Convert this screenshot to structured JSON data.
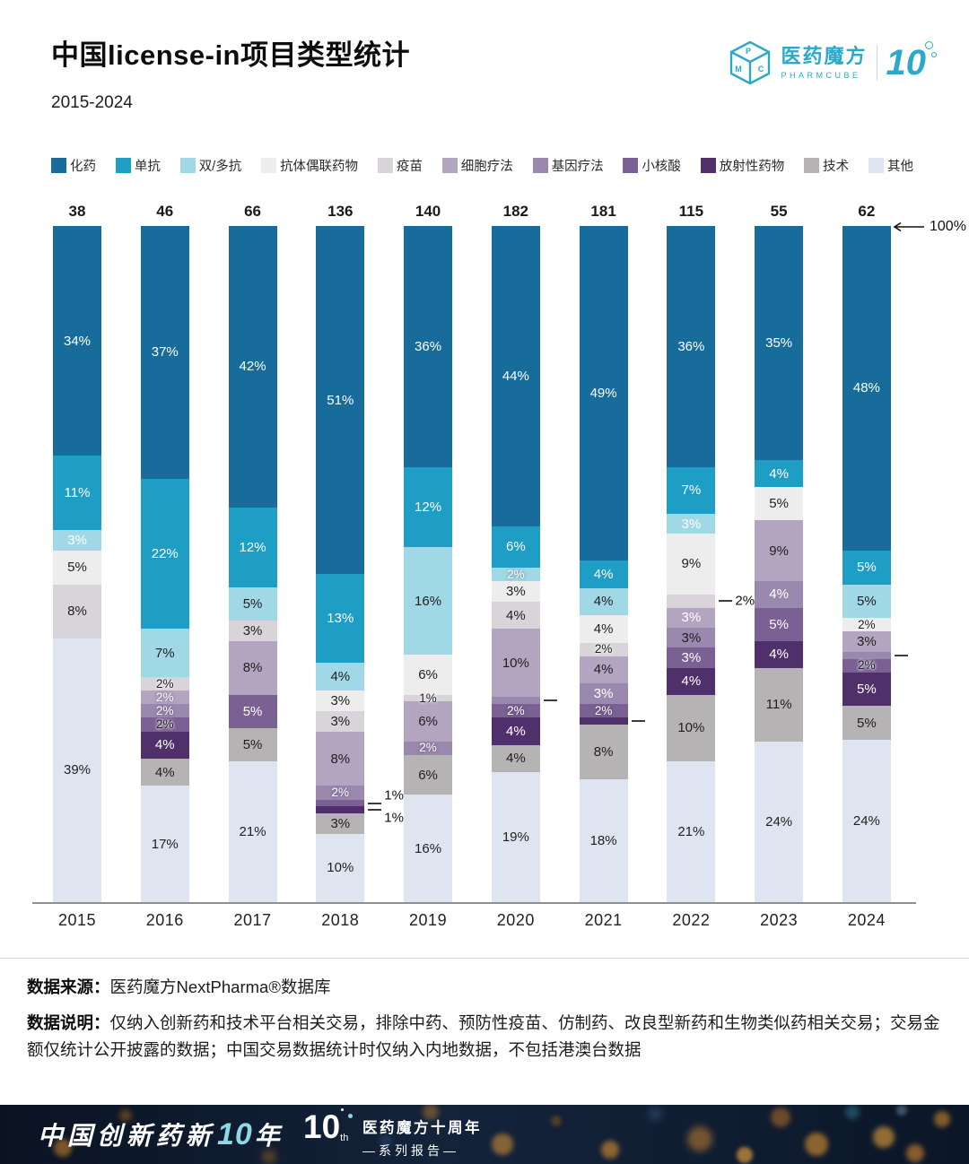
{
  "header": {
    "title": "中国license-in项目类型统计",
    "subtitle": "2015-2024",
    "logo": {
      "brand": "医药魔方",
      "brand_en": "PHARMCUBE",
      "anniversary_ten": "10",
      "cube_letters": [
        "P",
        "M",
        "C"
      ],
      "brand_color": "#2ba9c8"
    }
  },
  "chart_data": {
    "type": "bar",
    "stacked": true,
    "unit": "percent",
    "annotation_100": "100%",
    "legend_position": "top",
    "ylim": [
      0,
      100
    ],
    "categories": [
      {
        "label": "化药",
        "color": "#176c9c",
        "light_text": true
      },
      {
        "label": "单抗",
        "color": "#1e9dc5",
        "light_text": true
      },
      {
        "label": "双/多抗",
        "color": "#a0d8e5",
        "light_text": false
      },
      {
        "label": "抗体偶联药物",
        "color": "#ededee",
        "light_text": false
      },
      {
        "label": "疫苗",
        "color": "#d8d4da",
        "light_text": false
      },
      {
        "label": "细胞疗法",
        "color": "#b3a4c0",
        "light_text": false
      },
      {
        "label": "基因疗法",
        "color": "#9b88ae",
        "light_text": true
      },
      {
        "label": "小核酸",
        "color": "#7a6093",
        "light_text": true
      },
      {
        "label": "放射性药物",
        "color": "#50306a",
        "light_text": true
      },
      {
        "label": "技术",
        "color": "#b6b3b5",
        "light_text": false
      },
      {
        "label": "其他",
        "color": "#dfe5f0",
        "light_text": false
      }
    ],
    "years": [
      {
        "year": "2015",
        "total": 38,
        "segments": [
          {
            "c": "化药",
            "v": 34,
            "t": "34%"
          },
          {
            "c": "单抗",
            "v": 11,
            "t": "11%"
          },
          {
            "c": "双/多抗",
            "v": 3,
            "t": "3%",
            "wt": 1
          },
          {
            "c": "抗体偶联药物",
            "v": 5,
            "t": "5%"
          },
          {
            "c": "疫苗",
            "v": 8,
            "t": "8%"
          },
          {
            "c": "其他",
            "v": 39,
            "t": "39%"
          }
        ]
      },
      {
        "year": "2016",
        "total": 46,
        "segments": [
          {
            "c": "化药",
            "v": 37,
            "t": "37%"
          },
          {
            "c": "单抗",
            "v": 22,
            "t": "22%"
          },
          {
            "c": "双/多抗",
            "v": 7,
            "t": "7%"
          },
          {
            "c": "疫苗",
            "v": 2,
            "t": "2%"
          },
          {
            "c": "细胞疗法",
            "v": 2,
            "t": "2%",
            "wt": 1
          },
          {
            "c": "基因疗法",
            "v": 2,
            "t": "2%"
          },
          {
            "c": "小核酸",
            "v": 2,
            "t": "2%",
            "wt": 0
          },
          {
            "c": "放射性药物",
            "v": 4,
            "t": "4%"
          },
          {
            "c": "技术",
            "v": 4,
            "t": "4%"
          },
          {
            "c": "其他",
            "v": 17,
            "t": "17%"
          }
        ]
      },
      {
        "year": "2017",
        "total": 66,
        "segments": [
          {
            "c": "化药",
            "v": 42,
            "t": "42%"
          },
          {
            "c": "单抗",
            "v": 12,
            "t": "12%"
          },
          {
            "c": "双/多抗",
            "v": 5,
            "t": "5%"
          },
          {
            "c": "疫苗",
            "v": 3,
            "t": "3%"
          },
          {
            "c": "细胞疗法",
            "v": 8,
            "t": "8%"
          },
          {
            "c": "小核酸",
            "v": 5,
            "t": "5%"
          },
          {
            "c": "技术",
            "v": 5,
            "t": "5%"
          },
          {
            "c": "其他",
            "v": 21,
            "t": "21%"
          }
        ]
      },
      {
        "year": "2018",
        "total": 136,
        "segments": [
          {
            "c": "化药",
            "v": 51,
            "t": "51%"
          },
          {
            "c": "单抗",
            "v": 13,
            "t": "13%"
          },
          {
            "c": "双/多抗",
            "v": 4,
            "t": "4%"
          },
          {
            "c": "抗体偶联药物",
            "v": 3,
            "t": "3%"
          },
          {
            "c": "疫苗",
            "v": 3,
            "t": "3%"
          },
          {
            "c": "细胞疗法",
            "v": 8,
            "t": "8%"
          },
          {
            "c": "基因疗法",
            "v": 2,
            "t": "2%",
            "wt": 1
          },
          {
            "c": "小核酸",
            "v": 1,
            "t": "1%",
            "pos": "out",
            "dy": -9
          },
          {
            "c": "放射性药物",
            "v": 1,
            "t": "1%",
            "pos": "out",
            "dy": 9
          },
          {
            "c": "技术",
            "v": 3,
            "t": "3%"
          },
          {
            "c": "其他",
            "v": 10,
            "t": "10%"
          }
        ]
      },
      {
        "year": "2019",
        "total": 140,
        "segments": [
          {
            "c": "化药",
            "v": 36,
            "t": "36%"
          },
          {
            "c": "单抗",
            "v": 12,
            "t": "12%"
          },
          {
            "c": "双/多抗",
            "v": 16,
            "t": "16%"
          },
          {
            "c": "抗体偶联药物",
            "v": 6,
            "t": "6%"
          },
          {
            "c": "疫苗",
            "v": 1,
            "t": "1%"
          },
          {
            "c": "细胞疗法",
            "v": 6,
            "t": "6%"
          },
          {
            "c": "基因疗法",
            "v": 2,
            "t": "2%"
          },
          {
            "c": "技术",
            "v": 6,
            "t": "6%"
          },
          {
            "c": "其他",
            "v": 16,
            "t": "16%"
          }
        ]
      },
      {
        "year": "2020",
        "total": 182,
        "segments": [
          {
            "c": "化药",
            "v": 44,
            "t": "44%"
          },
          {
            "c": "单抗",
            "v": 6,
            "t": "6%"
          },
          {
            "c": "双/多抗",
            "v": 2,
            "t": "2%",
            "wt": 1
          },
          {
            "c": "抗体偶联药物",
            "v": 3,
            "t": "3%"
          },
          {
            "c": "疫苗",
            "v": 4,
            "t": "4%"
          },
          {
            "c": "细胞疗法",
            "v": 10,
            "t": "10%"
          },
          {
            "c": "基因疗法",
            "v": 1,
            "t": "",
            "pos": "dash"
          },
          {
            "c": "小核酸",
            "v": 2,
            "t": "2%"
          },
          {
            "c": "放射性药物",
            "v": 4,
            "t": "4%"
          },
          {
            "c": "技术",
            "v": 4,
            "t": "4%"
          },
          {
            "c": "其他",
            "v": 19,
            "t": "19%"
          }
        ]
      },
      {
        "year": "2021",
        "total": 181,
        "segments": [
          {
            "c": "化药",
            "v": 49,
            "t": "49%"
          },
          {
            "c": "单抗",
            "v": 4,
            "t": "4%"
          },
          {
            "c": "双/多抗",
            "v": 4,
            "t": "4%"
          },
          {
            "c": "抗体偶联药物",
            "v": 4,
            "t": "4%"
          },
          {
            "c": "疫苗",
            "v": 2,
            "t": "2%"
          },
          {
            "c": "细胞疗法",
            "v": 4,
            "t": "4%"
          },
          {
            "c": "基因疗法",
            "v": 3,
            "t": "3%"
          },
          {
            "c": "小核酸",
            "v": 2,
            "t": "2%"
          },
          {
            "c": "放射性药物",
            "v": 1,
            "t": "",
            "pos": "dash"
          },
          {
            "c": "技术",
            "v": 8,
            "t": "8%"
          },
          {
            "c": "其他",
            "v": 18,
            "t": "18%"
          }
        ]
      },
      {
        "year": "2022",
        "total": 115,
        "segments": [
          {
            "c": "化药",
            "v": 36,
            "t": "36%"
          },
          {
            "c": "单抗",
            "v": 7,
            "t": "7%"
          },
          {
            "c": "双/多抗",
            "v": 3,
            "t": "3%",
            "wt": 1
          },
          {
            "c": "抗体偶联药物",
            "v": 9,
            "t": "9%"
          },
          {
            "c": "疫苗",
            "v": 2,
            "t": "2%",
            "pos": "out",
            "dy": 0
          },
          {
            "c": "细胞疗法",
            "v": 3,
            "t": "3%",
            "wt": 1
          },
          {
            "c": "基因疗法",
            "v": 3,
            "t": "3%",
            "wt": 0
          },
          {
            "c": "小核酸",
            "v": 3,
            "t": "3%"
          },
          {
            "c": "放射性药物",
            "v": 4,
            "t": "4%"
          },
          {
            "c": "技术",
            "v": 10,
            "t": "10%"
          },
          {
            "c": "其他",
            "v": 21,
            "t": "21%"
          }
        ]
      },
      {
        "year": "2023",
        "total": 55,
        "segments": [
          {
            "c": "化药",
            "v": 35,
            "t": "35%"
          },
          {
            "c": "单抗",
            "v": 4,
            "t": "4%"
          },
          {
            "c": "抗体偶联药物",
            "v": 5,
            "t": "5%"
          },
          {
            "c": "细胞疗法",
            "v": 9,
            "t": "9%"
          },
          {
            "c": "基因疗法",
            "v": 4,
            "t": "4%"
          },
          {
            "c": "小核酸",
            "v": 5,
            "t": "5%"
          },
          {
            "c": "放射性药物",
            "v": 4,
            "t": "4%"
          },
          {
            "c": "技术",
            "v": 11,
            "t": "11%"
          },
          {
            "c": "其他",
            "v": 24,
            "t": "24%"
          }
        ]
      },
      {
        "year": "2024",
        "total": 62,
        "segments": [
          {
            "c": "化药",
            "v": 48,
            "t": "48%"
          },
          {
            "c": "单抗",
            "v": 5,
            "t": "5%"
          },
          {
            "c": "双/多抗",
            "v": 5,
            "t": "5%"
          },
          {
            "c": "抗体偶联药物",
            "v": 2,
            "t": "2%"
          },
          {
            "c": "细胞疗法",
            "v": 3,
            "t": "3%"
          },
          {
            "c": "基因疗法",
            "v": 1,
            "t": "",
            "pos": "dash"
          },
          {
            "c": "小核酸",
            "v": 2,
            "t": "2%",
            "wt": 0
          },
          {
            "c": "放射性药物",
            "v": 5,
            "t": "5%"
          },
          {
            "c": "技术",
            "v": 5,
            "t": "5%"
          },
          {
            "c": "其他",
            "v": 24,
            "t": "24%"
          }
        ]
      }
    ]
  },
  "footer": {
    "source_label": "数据来源：",
    "source_text": "医药魔方NextPharma®数据库",
    "note_label": "数据说明：",
    "note_text": "仅纳入创新药和技术平台相关交易，排除中药、预防性疫苗、仿制药、改良型新药和生物类似药相关交易；交易金额仅统计公开披露的数据；中国交易数据统计时仅纳入内地数据，不包括港澳台数据"
  },
  "banner": {
    "title_prefix": "中国创新药新",
    "title_ten": "10",
    "title_suffix": "年",
    "logo_ten": "10",
    "logo_th": "th",
    "tagline1": "医药魔方十周年",
    "tagline2": "—系列报告—"
  }
}
